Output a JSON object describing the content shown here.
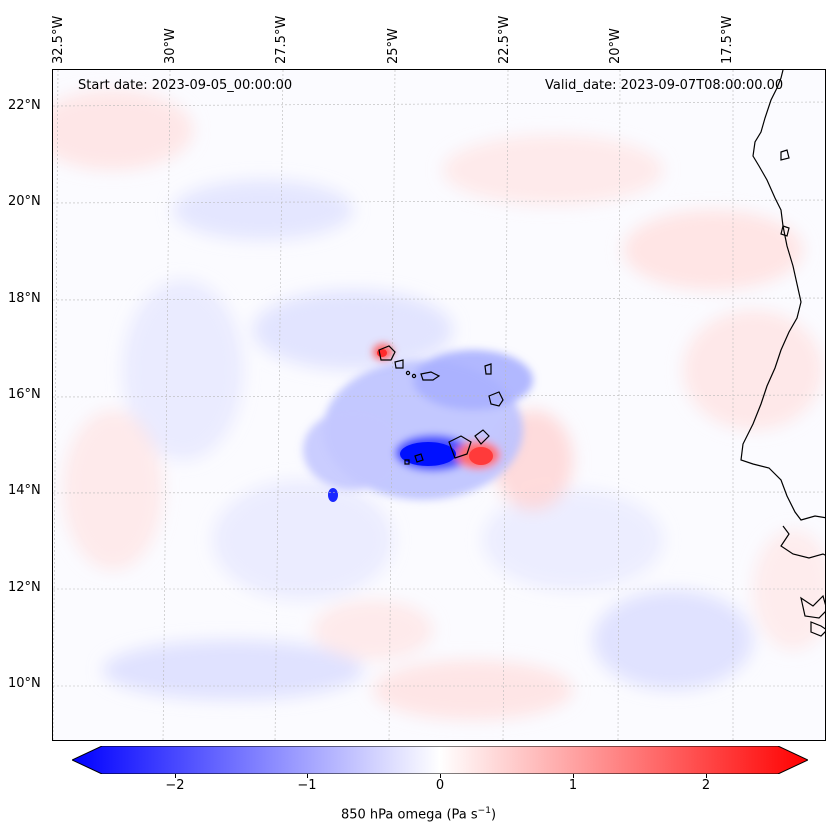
{
  "header": {
    "start_date": "Start date: 2023-09-05_00:00:00",
    "valid_date": "Valid_date: 2023-09-07T08:00:00.00"
  },
  "axes": {
    "lon_labels": [
      "32.5°W",
      "30°W",
      "27.5°W",
      "25°W",
      "22.5°W",
      "20°W",
      "17.5°W"
    ],
    "lat_labels": [
      "22°N",
      "20°N",
      "18°N",
      "16°N",
      "14°N",
      "12°N",
      "10°N"
    ]
  },
  "colorbar": {
    "label": "850 hPa omega (Pa s",
    "label_sup": "−1",
    "label_end": ")",
    "ticks": [
      "−2",
      "−1",
      "0",
      "1",
      "2"
    ],
    "range": [
      -2.6,
      2.6
    ],
    "colors": {
      "neg": "#0000ff",
      "zero": "#ffffff",
      "pos": "#ff0000"
    }
  },
  "map": {
    "coastline_color": "#000000",
    "grid": true,
    "features": [
      "Cape Verde islands",
      "West African coastline"
    ]
  }
}
